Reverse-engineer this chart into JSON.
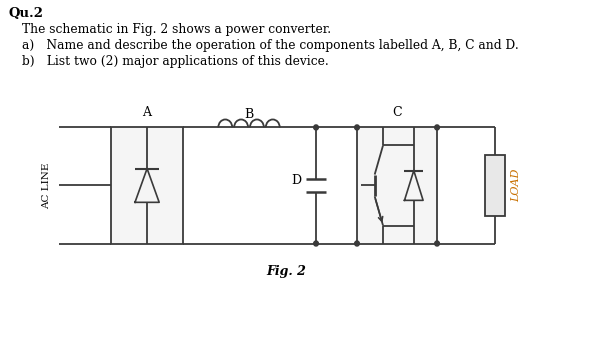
{
  "title_text": "Qu.2",
  "line1": "The schematic in Fig. 2 shows a power converter.",
  "line2a": "a) Name and describe the operation of the components labelled A, B, C and D.",
  "line2b": "b) List two (2) major applications of this device.",
  "fig_label": "Fig. 2",
  "label_A": "A",
  "label_B": "B",
  "label_C": "C",
  "label_D": "D",
  "label_acline": "AC LINE",
  "label_load": "LOAD",
  "bg_color": "#ffffff",
  "line_color": "#3a3a3a",
  "text_color": "#000000",
  "orange_color": "#c87000",
  "block_face": "#f5f5f5",
  "load_face": "#e8e8e8"
}
